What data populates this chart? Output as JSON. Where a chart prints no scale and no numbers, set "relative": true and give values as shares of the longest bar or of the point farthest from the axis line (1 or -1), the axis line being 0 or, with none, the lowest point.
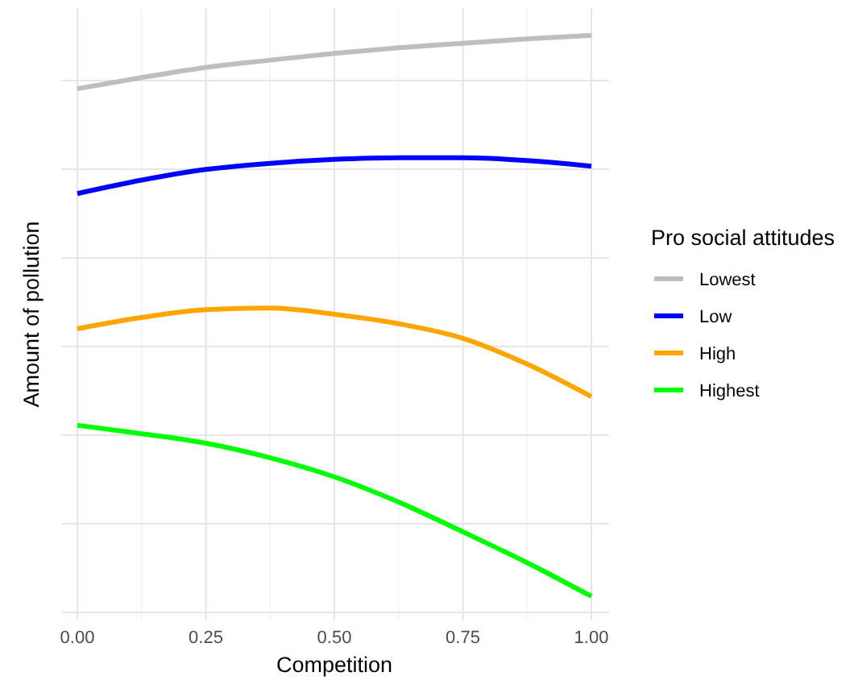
{
  "chart_data": {
    "type": "line",
    "relative": true,
    "xlabel": "Competition",
    "ylabel": "Amount of pollution",
    "legend_title": "Pro social attitudes",
    "x": [
      0,
      0.125,
      0.25,
      0.375,
      0.5,
      0.625,
      0.75,
      0.875,
      1
    ],
    "xlim": [
      0,
      1
    ],
    "xticks": [
      {
        "value": 0,
        "label": "0.00"
      },
      {
        "value": 0.25,
        "label": "0.25"
      },
      {
        "value": 0.5,
        "label": "0.50"
      },
      {
        "value": 0.75,
        "label": "0.75"
      },
      {
        "value": 1,
        "label": "1.00"
      }
    ],
    "series": [
      {
        "name": "Lowest",
        "color": "#bebebe",
        "values": [
          0.905,
          0.925,
          0.943,
          0.956,
          0.968,
          0.978,
          0.986,
          0.994,
          1
        ]
      },
      {
        "name": "Low",
        "color": "#0000ff",
        "values": [
          0.718,
          0.742,
          0.761,
          0.772,
          0.779,
          0.782,
          0.782,
          0.777,
          0.767
        ]
      },
      {
        "name": "High",
        "color": "#ffa500",
        "values": [
          0.477,
          0.497,
          0.511,
          0.514,
          0.503,
          0.486,
          0.46,
          0.414,
          0.356
        ]
      },
      {
        "name": "Highest",
        "color": "#00ff00",
        "values": [
          0.305,
          0.29,
          0.273,
          0.247,
          0.213,
          0.168,
          0.115,
          0.06,
          0
        ]
      }
    ],
    "grid": true,
    "legend": "right",
    "line_style": "solid",
    "marker": "none"
  }
}
